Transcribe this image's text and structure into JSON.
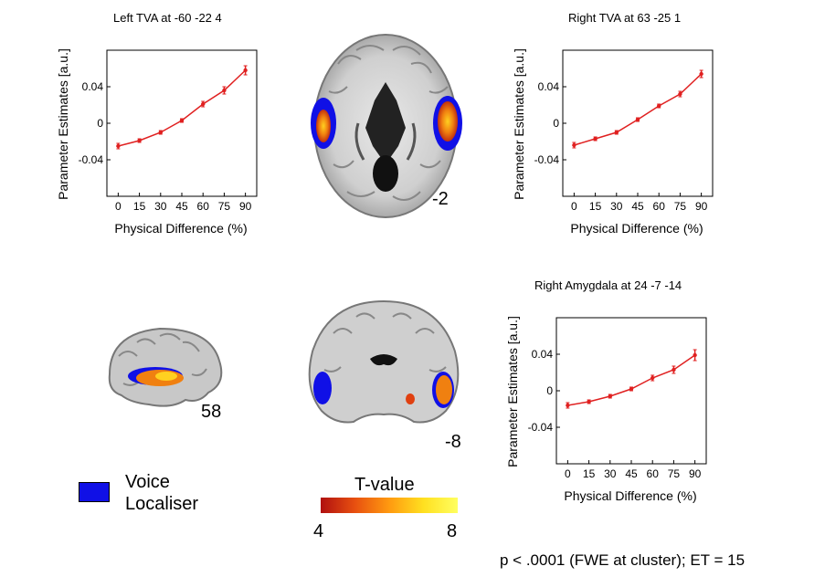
{
  "chart_data": [
    {
      "id": "left-tva",
      "type": "line",
      "title": "Left TVA at -60 -22 4",
      "xlabel": "Physical Difference (%)",
      "ylabel": "Parameter Estimates [a.u.]",
      "x": [
        0,
        15,
        30,
        45,
        60,
        75,
        90
      ],
      "values": [
        -0.025,
        -0.019,
        -0.01,
        0.003,
        0.021,
        0.036,
        0.058
      ],
      "errors": [
        0.003,
        0.002,
        0.002,
        0.002,
        0.003,
        0.004,
        0.005
      ],
      "xticks": [
        "0",
        "15",
        "30",
        "45",
        "60",
        "75",
        "90"
      ],
      "yticks": [
        -0.04,
        0,
        0.04
      ],
      "ytick_labels": [
        "-0.04",
        "0",
        "0.04"
      ],
      "xlim": [
        -8,
        98
      ],
      "ylim": [
        -0.08,
        0.08
      ],
      "color": "#e02020"
    },
    {
      "id": "right-tva",
      "type": "line",
      "title": "Right TVA at 63 -25 1",
      "xlabel": "Physical Difference (%)",
      "ylabel": "Parameter Estimates [a.u.]",
      "x": [
        0,
        15,
        30,
        45,
        60,
        75,
        90
      ],
      "values": [
        -0.024,
        -0.017,
        -0.01,
        0.004,
        0.019,
        0.032,
        0.054
      ],
      "errors": [
        0.003,
        0.002,
        0.002,
        0.002,
        0.002,
        0.003,
        0.004
      ],
      "xticks": [
        "0",
        "15",
        "30",
        "45",
        "60",
        "75",
        "90"
      ],
      "yticks": [
        -0.04,
        0,
        0.04
      ],
      "ytick_labels": [
        "-0.04",
        "0",
        "0.04"
      ],
      "xlim": [
        -8,
        98
      ],
      "ylim": [
        -0.08,
        0.08
      ],
      "color": "#e02020"
    },
    {
      "id": "right-amygdala",
      "type": "line",
      "title": "Right Amygdala at 24 -7 -14",
      "xlabel": "Physical Difference (%)",
      "ylabel": "Parameter Estimates [a.u.]",
      "x": [
        0,
        15,
        30,
        45,
        60,
        75,
        90
      ],
      "values": [
        -0.016,
        -0.012,
        -0.006,
        0.002,
        0.014,
        0.023,
        0.039
      ],
      "errors": [
        0.003,
        0.002,
        0.002,
        0.002,
        0.003,
        0.004,
        0.006
      ],
      "xticks": [
        "0",
        "15",
        "30",
        "45",
        "60",
        "75",
        "90"
      ],
      "yticks": [
        -0.04,
        0,
        0.04
      ],
      "ytick_labels": [
        "-0.04",
        "0",
        "0.04"
      ],
      "xlim": [
        -8,
        98
      ],
      "ylim": [
        -0.08,
        0.08
      ],
      "color": "#e02020"
    }
  ],
  "slices": {
    "axial": "-2",
    "sagittal": "58",
    "coronal": "-8"
  },
  "legend": {
    "voice_line1": "Voice",
    "voice_line2": "Localiser",
    "voice_color": "#1010e6",
    "tvalue_title": "T-value",
    "tvalue_min": "4",
    "tvalue_max": "8"
  },
  "footnote": "p < .0001 (FWE at cluster); ET = 15"
}
